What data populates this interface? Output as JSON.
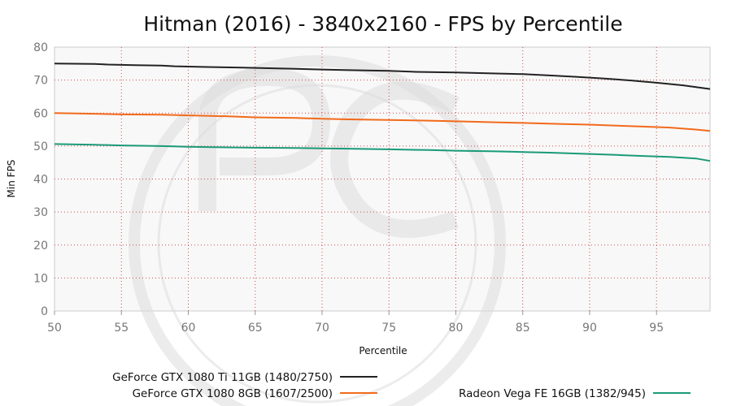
{
  "chart_data": {
    "type": "line",
    "title": "Hitman (2016) - 3840x2160 - FPS by Percentile",
    "xlabel": "Percentile",
    "ylabel": "Min FPS",
    "xlim": [
      50,
      99
    ],
    "ylim": [
      0,
      80
    ],
    "xticks": [
      50,
      55,
      60,
      65,
      70,
      75,
      80,
      85,
      90,
      95
    ],
    "yticks": [
      0,
      10,
      20,
      30,
      40,
      50,
      60,
      70,
      80
    ],
    "grid": true,
    "legend_position": "bottom",
    "series": [
      {
        "name": "GeForce GTX 1080 Ti 11GB (1480/2750)",
        "color": "#222222",
        "x": [
          50,
          53,
          54,
          56,
          58,
          59,
          61,
          64,
          66,
          68,
          70,
          72,
          75,
          77,
          80,
          83,
          85,
          87,
          89,
          91,
          93,
          95,
          97,
          99
        ],
        "y": [
          75.0,
          74.9,
          74.7,
          74.5,
          74.4,
          74.2,
          74.0,
          73.8,
          73.6,
          73.4,
          73.2,
          73.0,
          72.8,
          72.5,
          72.3,
          72.0,
          71.8,
          71.4,
          71.0,
          70.5,
          69.9,
          69.2,
          68.4,
          67.3
        ]
      },
      {
        "name": "GeForce GTX 1080 8GB (1607/2500)",
        "color": "#f26a1b",
        "x": [
          50,
          53,
          55,
          58,
          60,
          63,
          65,
          68,
          70,
          72,
          75,
          78,
          80,
          83,
          85,
          88,
          90,
          92,
          94,
          96,
          98,
          99
        ],
        "y": [
          60.0,
          59.8,
          59.6,
          59.5,
          59.3,
          59.0,
          58.7,
          58.5,
          58.3,
          58.1,
          57.9,
          57.7,
          57.5,
          57.2,
          57.0,
          56.7,
          56.5,
          56.2,
          55.9,
          55.6,
          55.0,
          54.6
        ]
      },
      {
        "name": "Radeon Vega FE 16GB (1382/945)",
        "color": "#1a9a78",
        "x": [
          50,
          53,
          55,
          58,
          60,
          63,
          65,
          68,
          70,
          72,
          75,
          78,
          80,
          83,
          85,
          87,
          90,
          92,
          94,
          96,
          98,
          99
        ],
        "y": [
          50.6,
          50.4,
          50.2,
          50.0,
          49.8,
          49.6,
          49.5,
          49.4,
          49.3,
          49.2,
          49.0,
          48.8,
          48.6,
          48.4,
          48.2,
          48.0,
          47.6,
          47.3,
          47.0,
          46.7,
          46.2,
          45.5
        ]
      }
    ]
  }
}
